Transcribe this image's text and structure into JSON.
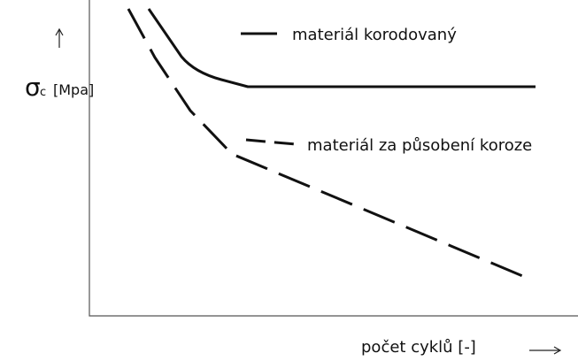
{
  "y_axis_label": {
    "symbol": "σ",
    "subscript": "c",
    "unit": "[Mpa]"
  },
  "legend": [
    "materiál korodovaný",
    "materiál za působení koroze"
  ],
  "x_axis_label": "počet cyklů [-]"
}
